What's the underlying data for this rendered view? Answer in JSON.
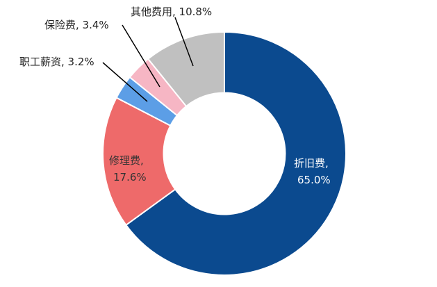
{
  "chart_data": {
    "type": "pie",
    "title": "",
    "series": [
      {
        "name": "折旧费",
        "value": 65.0,
        "label": "折旧费,",
        "pct_label": "65.0%",
        "color": "#0b4a8f"
      },
      {
        "name": "修理费",
        "value": 17.6,
        "label": "修理费,",
        "pct_label": "17.6%",
        "color": "#ee6a6a"
      },
      {
        "name": "职工薪资",
        "value": 3.2,
        "label": "职工薪资, 3.2%",
        "color": "#5c9ee6"
      },
      {
        "name": "保险费",
        "value": 3.4,
        "label": "保险费, 3.4%",
        "color": "#f6b6c4"
      },
      {
        "name": "其他费用",
        "value": 10.8,
        "label": "其他费用, 10.8%",
        "color": "#c0c0c0"
      }
    ],
    "inner_radius_ratio": 0.5,
    "legend": "none"
  }
}
